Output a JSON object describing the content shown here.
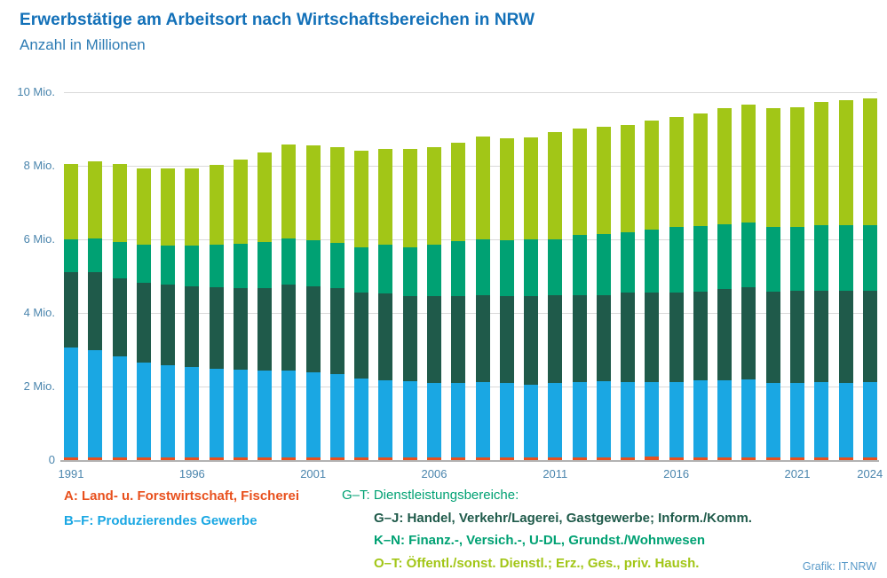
{
  "header": {
    "title": "Erwerbstätige am Arbeitsort nach Wirtschaftsbereichen in NRW",
    "subtitle": "Anzahl in Millionen"
  },
  "chart_data": {
    "type": "bar",
    "stacked": true,
    "title": "Erwerbstätige am Arbeitsort nach Wirtschaftsbereichen in NRW",
    "subtitle": "Anzahl in Millionen",
    "unit": "Mio.",
    "ylim": [
      0,
      10
    ],
    "grid": true,
    "y_ticks": [
      {
        "value": 0,
        "label": "0"
      },
      {
        "value": 2,
        "label": "2 Mio."
      },
      {
        "value": 4,
        "label": "4 Mio."
      },
      {
        "value": 6,
        "label": "6 Mio."
      },
      {
        "value": 8,
        "label": "8 Mio."
      },
      {
        "value": 10,
        "label": "10 Mio."
      }
    ],
    "categories": [
      "1991",
      "1992",
      "1993",
      "1994",
      "1995",
      "1996",
      "1997",
      "1998",
      "1999",
      "2000",
      "2001",
      "2002",
      "2003",
      "2004",
      "2005",
      "2006",
      "2007",
      "2008",
      "2009",
      "2010",
      "2011",
      "2012",
      "2013",
      "2014",
      "2015",
      "2016",
      "2017",
      "2018",
      "2019",
      "2020",
      "2021",
      "2022",
      "2023",
      "2024"
    ],
    "x_labeled_years": [
      "1991",
      "1996",
      "2001",
      "2006",
      "2011",
      "2016",
      "2021",
      "2024"
    ],
    "series": [
      {
        "id": "A",
        "label": "A: Land- u. Forstwirtschaft, Fischerei",
        "color": "#e8501d",
        "values": [
          0.08,
          0.08,
          0.08,
          0.08,
          0.08,
          0.08,
          0.08,
          0.08,
          0.08,
          0.08,
          0.08,
          0.08,
          0.08,
          0.08,
          0.08,
          0.08,
          0.08,
          0.08,
          0.08,
          0.08,
          0.08,
          0.08,
          0.08,
          0.08,
          0.1,
          0.08,
          0.08,
          0.08,
          0.08,
          0.08,
          0.08,
          0.08,
          0.08,
          0.08
        ]
      },
      {
        "id": "B-F",
        "label": "B–F: Produzierendes Gewerbe",
        "color": "#1aa7e3",
        "values": [
          2.97,
          2.91,
          2.73,
          2.57,
          2.49,
          2.45,
          2.41,
          2.38,
          2.35,
          2.36,
          2.3,
          2.25,
          2.14,
          2.1,
          2.06,
          2.02,
          2.02,
          2.04,
          2.02,
          1.98,
          2.02,
          2.04,
          2.06,
          2.04,
          2.02,
          2.05,
          2.09,
          2.09,
          2.12,
          2.02,
          2.02,
          2.04,
          2.02,
          2.04
        ]
      },
      {
        "id": "G-J",
        "label": "G–J: Handel, Verkehr/Lagerei, Gastgewerbe; Inform./Komm.",
        "color": "#1f5a4a",
        "values": [
          2.06,
          2.11,
          2.14,
          2.16,
          2.2,
          2.2,
          2.21,
          2.22,
          2.25,
          2.33,
          2.35,
          2.34,
          2.33,
          2.36,
          2.33,
          2.35,
          2.36,
          2.37,
          2.35,
          2.39,
          2.38,
          2.36,
          2.35,
          2.43,
          2.43,
          2.42,
          2.42,
          2.48,
          2.51,
          2.49,
          2.5,
          2.48,
          2.51,
          2.49
        ]
      },
      {
        "id": "K-N",
        "label": "K–N: Finanz.-, Versich.-, U-DL, Grundst./Wohnwesen",
        "color": "#00a173",
        "values": [
          0.89,
          0.92,
          0.98,
          1.05,
          1.07,
          1.1,
          1.15,
          1.2,
          1.24,
          1.26,
          1.26,
          1.24,
          1.24,
          1.31,
          1.32,
          1.42,
          1.49,
          1.52,
          1.52,
          1.54,
          1.53,
          1.65,
          1.65,
          1.64,
          1.71,
          1.78,
          1.77,
          1.77,
          1.74,
          1.75,
          1.74,
          1.78,
          1.77,
          1.77
        ]
      },
      {
        "id": "O-T",
        "label": "O–T: Öffentl./sonst. Dienstl.; Erz., Ges., priv. Haush.",
        "color": "#a2c617",
        "values": [
          2.06,
          2.1,
          2.11,
          2.07,
          2.08,
          2.09,
          2.17,
          2.29,
          2.44,
          2.55,
          2.56,
          2.59,
          2.63,
          2.61,
          2.66,
          2.65,
          2.69,
          2.79,
          2.77,
          2.79,
          2.91,
          2.89,
          2.92,
          2.93,
          2.96,
          2.99,
          3.06,
          3.15,
          3.21,
          3.24,
          3.26,
          3.36,
          3.4,
          3.44
        ]
      }
    ]
  },
  "legend": {
    "left": [
      {
        "text": "A: Land- u. Forstwirtschaft, Fischerei",
        "color": "#e8501d"
      },
      {
        "text": "B–F: Produzierendes Gewerbe",
        "color": "#1aa7e3"
      }
    ],
    "right_heading": {
      "text": "G–T: Dienstleistungsbereiche:",
      "color": "#00a173"
    },
    "right_items": [
      {
        "text": "G–J: Handel, Verkehr/Lagerei, Gastgewerbe; Inform./Komm.",
        "color": "#1f5a4a"
      },
      {
        "text": "K–N: Finanz.-, Versich.-, U-DL, Grundst./Wohnwesen",
        "color": "#00a173"
      },
      {
        "text": "O–T: Öffentl./sonst. Dienstl.; Erz., Ges., priv. Haush.",
        "color": "#a2c617"
      }
    ]
  },
  "footer": {
    "credit": "Grafik: IT.NRW"
  },
  "colors": {
    "title": "#1270b8",
    "axis_labels": "#4a85ad",
    "gridline": "#d9d9d9",
    "baseline": "#b3b3b3",
    "credit": "#5899c8"
  }
}
